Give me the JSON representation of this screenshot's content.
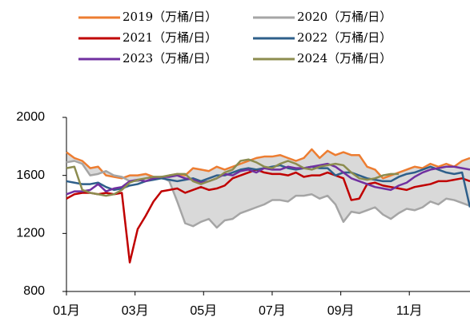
{
  "chart_data": {
    "type": "line",
    "xlim": [
      0,
      51
    ],
    "xticks": [
      {
        "value": 0,
        "label": "01月"
      },
      {
        "value": 8.67,
        "label": "03月"
      },
      {
        "value": 17.33,
        "label": "05月"
      },
      {
        "value": 26,
        "label": "07月"
      },
      {
        "value": 34.67,
        "label": "09月"
      },
      {
        "value": 43.33,
        "label": "11月"
      }
    ],
    "ylim": [
      800,
      2000
    ],
    "yticks": [
      800,
      1200,
      1600,
      2000
    ],
    "series": [
      {
        "name": "2019（万桶/日）",
        "color": "#ed7d31",
        "values": [
          1760,
          1720,
          1700,
          1650,
          1660,
          1600,
          1590,
          1580,
          1600,
          1600,
          1610,
          1590,
          1580,
          1600,
          1610,
          1600,
          1650,
          1640,
          1630,
          1660,
          1640,
          1660,
          1680,
          1700,
          1720,
          1730,
          1730,
          1740,
          1720,
          1700,
          1720,
          1780,
          1720,
          1770,
          1740,
          1760,
          1740,
          1740,
          1660,
          1640,
          1580,
          1600,
          1620,
          1640,
          1660,
          1650,
          1680,
          1660,
          1680,
          1660,
          1700,
          1720
        ]
      },
      {
        "name": "2020（万桶/日）",
        "color": "#a5a5a5",
        "values": [
          1690,
          1700,
          1680,
          1600,
          1610,
          1630,
          1600,
          1590,
          1560,
          1560,
          1580,
          1590,
          1590,
          1560,
          1420,
          1270,
          1250,
          1280,
          1300,
          1240,
          1290,
          1300,
          1340,
          1360,
          1380,
          1400,
          1430,
          1430,
          1420,
          1460,
          1460,
          1470,
          1440,
          1460,
          1400,
          1280,
          1350,
          1340,
          1360,
          1380,
          1330,
          1300,
          1340,
          1370,
          1360,
          1380,
          1420,
          1400,
          1440,
          1430,
          1410,
          1390
        ]
      },
      {
        "name": "2021（万桶/日）",
        "color": "#c00000",
        "values": [
          1440,
          1470,
          1480,
          1480,
          1470,
          1480,
          1470,
          1480,
          1000,
          1230,
          1320,
          1420,
          1490,
          1500,
          1510,
          1480,
          1500,
          1520,
          1500,
          1510,
          1530,
          1580,
          1600,
          1620,
          1640,
          1620,
          1610,
          1610,
          1600,
          1620,
          1590,
          1600,
          1600,
          1620,
          1600,
          1580,
          1430,
          1440,
          1540,
          1550,
          1530,
          1520,
          1510,
          1500,
          1520,
          1530,
          1540,
          1560,
          1560,
          1570,
          1580,
          1560
        ]
      },
      {
        "name": "2022（万桶/日）",
        "color": "#2e5f8a",
        "values": [
          1560,
          1550,
          1540,
          1540,
          1550,
          1520,
          1500,
          1510,
          1530,
          1540,
          1560,
          1570,
          1580,
          1570,
          1560,
          1570,
          1580,
          1560,
          1580,
          1600,
          1600,
          1620,
          1640,
          1650,
          1640,
          1650,
          1660,
          1670,
          1650,
          1640,
          1650,
          1660,
          1650,
          1650,
          1600,
          1620,
          1620,
          1600,
          1580,
          1570,
          1560,
          1560,
          1590,
          1610,
          1620,
          1640,
          1660,
          1640,
          1620,
          1610,
          1620,
          1380
        ]
      },
      {
        "name": "2023（万桶/日）",
        "color": "#7030a0",
        "values": [
          1470,
          1490,
          1490,
          1500,
          1540,
          1490,
          1510,
          1520,
          1560,
          1570,
          1560,
          1580,
          1590,
          1590,
          1600,
          1580,
          1570,
          1550,
          1560,
          1580,
          1610,
          1600,
          1630,
          1640,
          1620,
          1650,
          1640,
          1640,
          1660,
          1650,
          1650,
          1660,
          1670,
          1680,
          1660,
          1620,
          1580,
          1560,
          1540,
          1520,
          1510,
          1500,
          1530,
          1550,
          1590,
          1620,
          1640,
          1650,
          1660,
          1660,
          1650,
          1640
        ]
      },
      {
        "name": "2024（万桶/日）",
        "color": "#8c8c4f",
        "values": [
          1650,
          1660,
          1500,
          1480,
          1470,
          1460,
          1470,
          1500,
          1550,
          1570,
          1580,
          1590,
          1590,
          1600,
          1610,
          1610,
          1560,
          1540,
          1560,
          1580,
          1620,
          1640,
          1700,
          1710,
          1690,
          1660,
          1650,
          1680,
          1700,
          1680,
          1650,
          1640,
          1660,
          1670,
          1680,
          1670,
          1620,
          1580,
          1570,
          1580,
          1600,
          1610,
          1610,
          null,
          null,
          null,
          null,
          null,
          null,
          null,
          null,
          null
        ]
      }
    ]
  }
}
